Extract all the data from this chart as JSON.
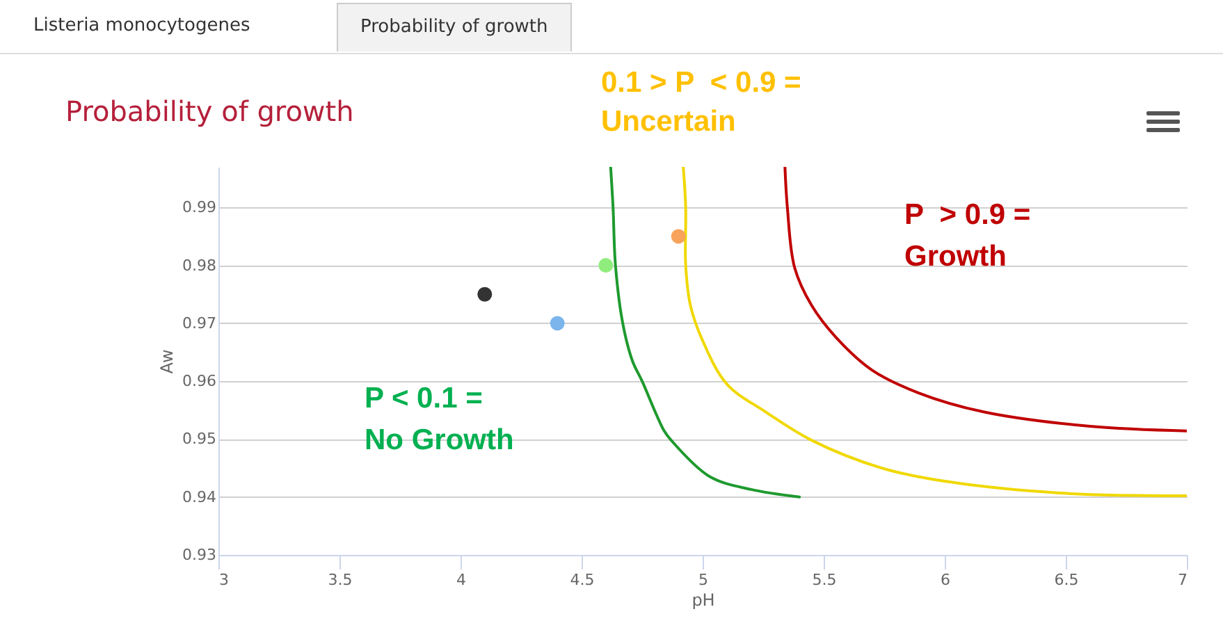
{
  "chart_data": {
    "type": "line",
    "title": "Probability of growth",
    "xlabel": "pH",
    "ylabel": "Aw",
    "xlim": [
      3,
      7
    ],
    "xticks": [
      3,
      3.5,
      4,
      4.5,
      5,
      5.5,
      6,
      6.5,
      7
    ],
    "ylim": [
      0.93,
      0.997
    ],
    "yticks": [
      0.93,
      0.94,
      0.95,
      0.96,
      0.97,
      0.98,
      0.99
    ],
    "grid": "y",
    "annotations": [
      "Listeria monocytogenes",
      "Probability of growth",
      "0.1 > P  < 0.9 =\nUncertain",
      "P < 0.1 =\nNo Growth",
      "P  > 0.9 =\nGrowth"
    ],
    "series": [
      {
        "color": "#1e9a2e",
        "x": [
          4.62,
          4.63,
          4.64,
          4.67,
          4.71,
          4.75,
          4.84,
          4.87,
          5.03,
          5.2,
          5.4
        ],
        "values": [
          0.997,
          0.99,
          0.98,
          0.97,
          0.9635,
          0.96,
          0.9515,
          0.9498,
          0.9435,
          0.9413,
          0.94
        ]
      },
      {
        "color": "#f0d800",
        "x": [
          4.92,
          4.93,
          4.93,
          4.95,
          5.0,
          5.1,
          5.26,
          5.45,
          5.74,
          6.02,
          6.51,
          7.0
        ],
        "values": [
          0.997,
          0.99,
          0.98,
          0.973,
          0.967,
          0.9595,
          0.9547,
          0.9498,
          0.945,
          0.9426,
          0.9406,
          0.9402
        ]
      },
      {
        "color": "#c00000",
        "x": [
          5.34,
          5.35,
          5.38,
          5.45,
          5.55,
          5.7,
          5.89,
          6.16,
          6.6,
          7.0
        ],
        "values": [
          0.997,
          0.99,
          0.9796,
          0.9731,
          0.9676,
          0.9619,
          0.958,
          0.9547,
          0.9522,
          0.9514
        ]
      },
      {
        "type": "scatter",
        "x": [
          4.1,
          4.4,
          4.6,
          4.9
        ],
        "values": [
          0.975,
          0.97,
          0.98,
          0.985
        ],
        "colors": [
          "#333333",
          "#7cb5ec",
          "#90ed7d",
          "#f7a35c"
        ]
      }
    ]
  }
}
